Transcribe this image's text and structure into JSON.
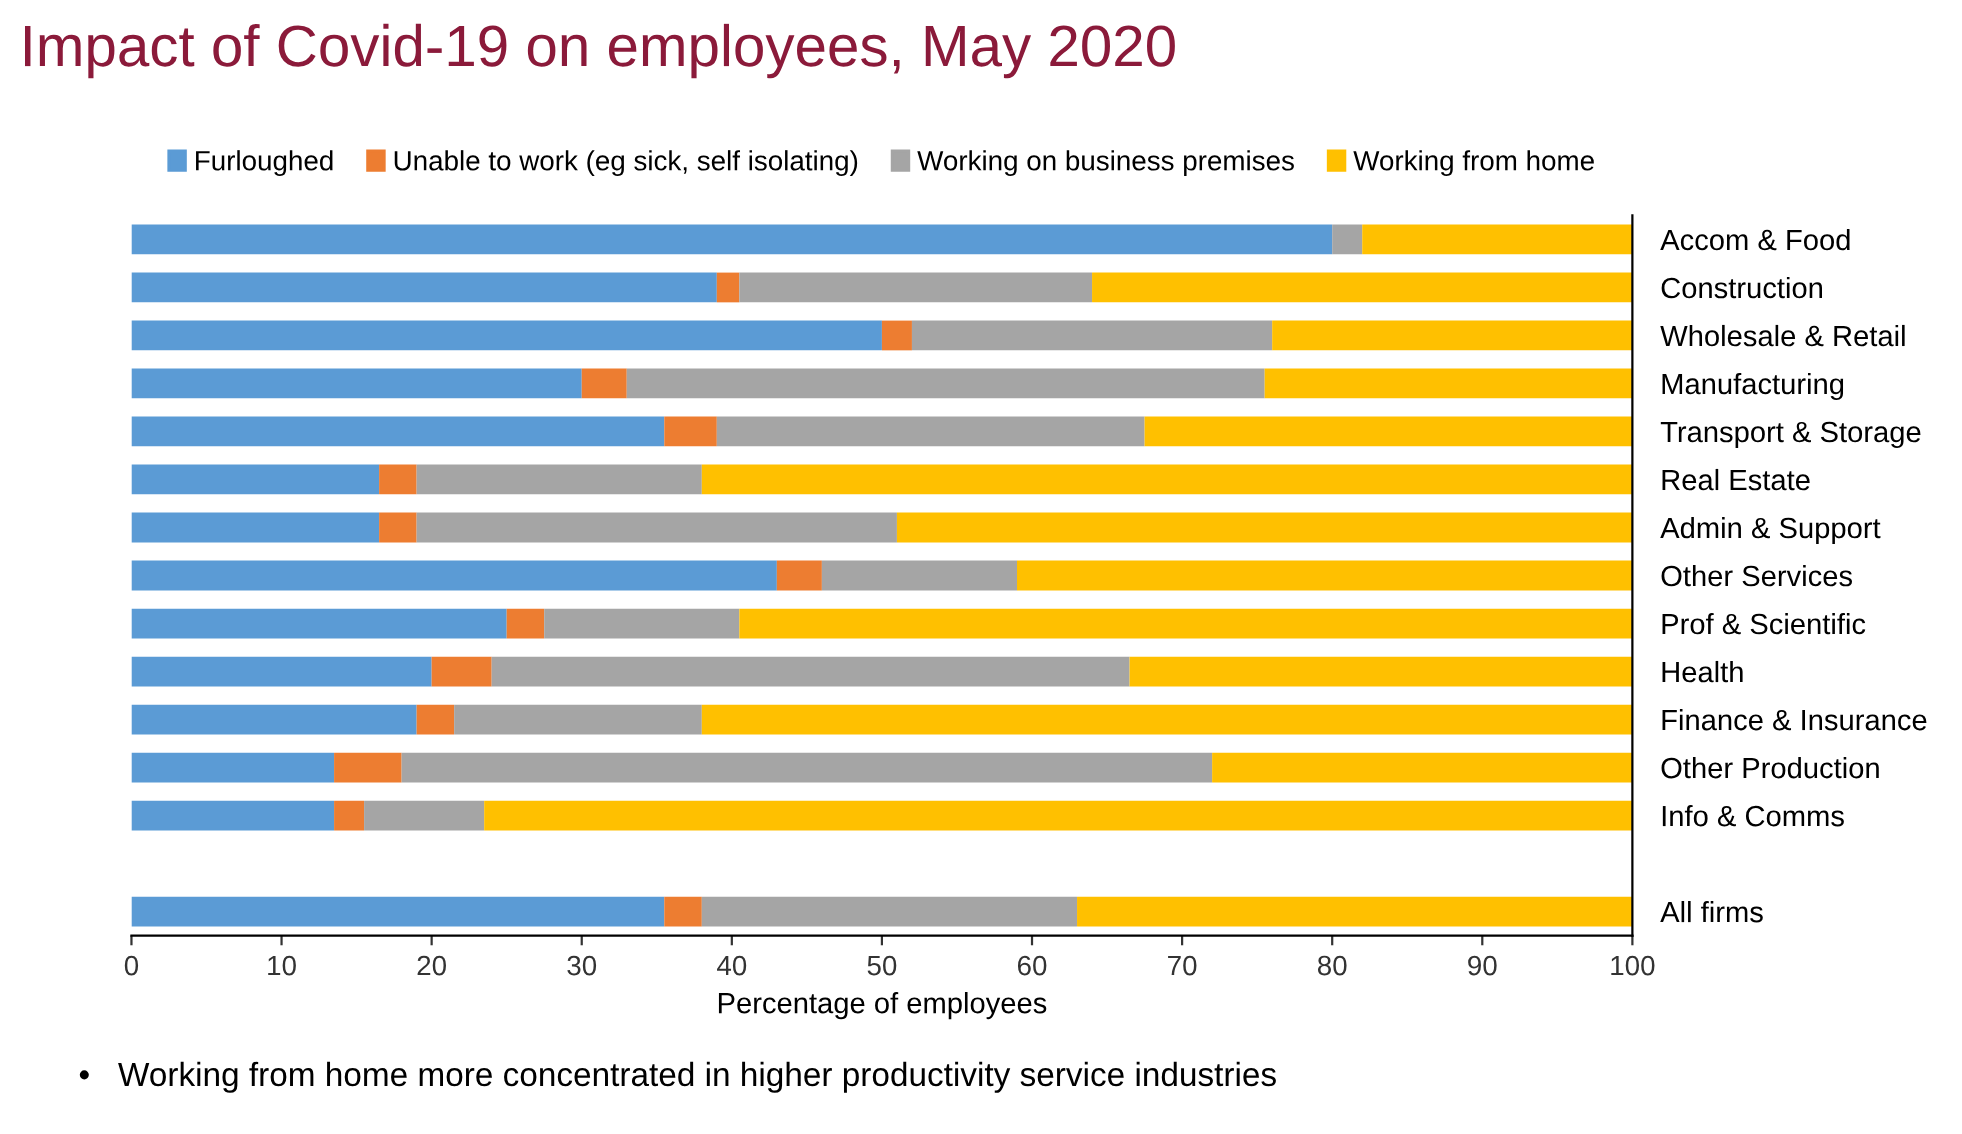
{
  "chart_data": {
    "type": "bar",
    "orientation": "horizontal",
    "stacked": true,
    "title": "Impact of Covid-19 on employees, May 2020",
    "xlabel": "Percentage of employees",
    "annotations": [
      "•   Working from home more concentrated in higher productivity service industries"
    ],
    "categories": [
      "Accom & Food",
      "Construction",
      "Wholesale & Retail",
      "Manufacturing",
      "Transport & Storage",
      "Real Estate",
      "Admin & Support",
      "Other Services",
      "Prof & Scientific",
      "Health",
      "Finance & Insurance",
      "Other Production",
      "Info & Comms",
      null,
      "All firms"
    ],
    "series": [
      {
        "name": "Furloughed",
        "color": "#5b9bd5",
        "values": [
          80,
          39,
          50,
          30,
          35.5,
          16.5,
          16.5,
          43,
          25,
          20,
          19,
          13.5,
          13.5,
          null,
          35.5
        ]
      },
      {
        "name": "Unable to work (eg sick, self isolating)",
        "color": "#ed7d31",
        "values": [
          0,
          1.5,
          2,
          3,
          3.5,
          2.5,
          2.5,
          3,
          2.5,
          4,
          2.5,
          4.5,
          2,
          null,
          2.5
        ]
      },
      {
        "name": "Working on business premises",
        "color": "#a5a5a5",
        "values": [
          2,
          23.5,
          24,
          42.5,
          28.5,
          19,
          32,
          13,
          13,
          42.5,
          16.5,
          54,
          8,
          null,
          25
        ]
      },
      {
        "name": "Working from home",
        "color": "#ffc000",
        "values": [
          18,
          36,
          24,
          24.5,
          32.5,
          62,
          49,
          41,
          59.5,
          33.5,
          62,
          28,
          76.5,
          null,
          37
        ]
      }
    ],
    "xlim": [
      0,
      100
    ],
    "xticks": [
      0,
      10,
      20,
      30,
      40,
      50,
      60,
      70,
      80,
      90,
      100
    ],
    "grid": false,
    "legend": "top"
  }
}
